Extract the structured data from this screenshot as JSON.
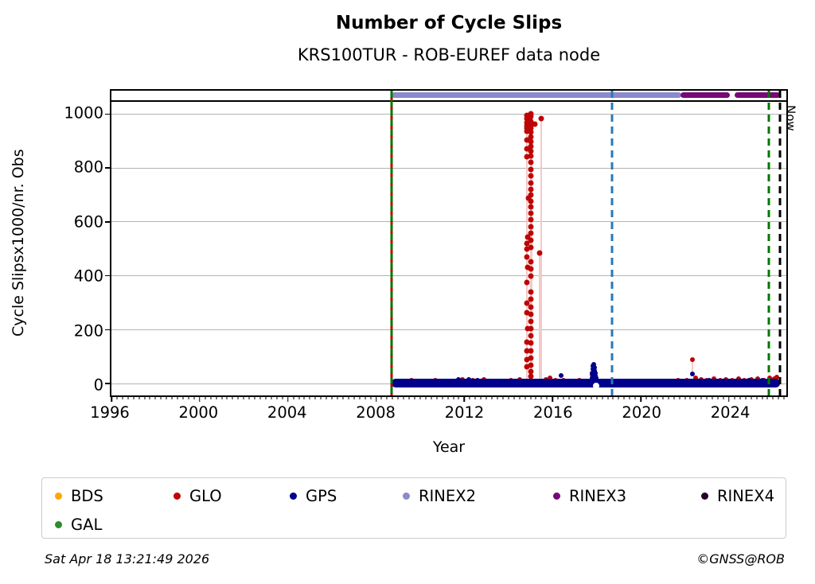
{
  "title": "Number of Cycle Slips",
  "subtitle": "KRS100TUR - ROB-EUREF data node",
  "footer": {
    "timestamp": "Sat Apr 18 13:21:49 2026",
    "credit": "©GNSS@ROB"
  },
  "legend": {
    "items": [
      {
        "label": "BDS",
        "color": "#FFA500"
      },
      {
        "label": "GLO",
        "color": "#BE0404"
      },
      {
        "label": "GPS",
        "color": "#00008B"
      },
      {
        "label": "RINEX2",
        "color": "#8A8ACC"
      },
      {
        "label": "RINEX3",
        "color": "#770877"
      },
      {
        "label": "RINEX4",
        "color": "#270227"
      },
      {
        "label": "GAL",
        "color": "#2E8B2E"
      }
    ]
  },
  "chart_data": {
    "type": "scatter",
    "title": "Number of Cycle Slips",
    "subtitle": "KRS100TUR - ROB-EUREF data node",
    "xlabel": "Year",
    "ylabel": "Cycle Slipsx1000/nr. Obs",
    "xlim": [
      1996,
      2026.6
    ],
    "ylim": [
      -44,
      1087
    ],
    "x_ticks": [
      1996,
      2000,
      2004,
      2008,
      2012,
      2016,
      2020,
      2024
    ],
    "x_minor_step": 0.25,
    "y_ticks": [
      0,
      200,
      400,
      600,
      800,
      1000
    ],
    "grid": {
      "axis": "y",
      "color": "#b3b3b3"
    },
    "now_label": "Now",
    "now_x": 2026.3,
    "top_rule_y": 1049,
    "rinex_bands": [
      {
        "name": "RINEX2",
        "color": "#8A8ACC",
        "y": 1070,
        "segments": [
          [
            2008.7,
            2021.85
          ]
        ]
      },
      {
        "name": "RINEX3",
        "color": "#770877",
        "y": 1070,
        "segments": [
          [
            2021.8,
            2024.05
          ],
          [
            2024.25,
            2026.3
          ]
        ]
      }
    ],
    "vlines": [
      {
        "x": 2008.7,
        "colors": [
          "#007800",
          "#C00000"
        ],
        "style": "dashed",
        "note": "data start (GAL/GLO)"
      },
      {
        "x": 2018.7,
        "colors": [
          "#2878B8"
        ],
        "style": "dashed"
      },
      {
        "x": 2025.8,
        "colors": [
          "#007800"
        ],
        "style": "dashed"
      },
      {
        "x": 2026.3,
        "colors": [
          "#000000"
        ],
        "style": "dashed",
        "label": "Now"
      }
    ],
    "stems": [
      {
        "x": 2014.83,
        "y1": 0,
        "y2": 985
      },
      {
        "x": 2015.0,
        "y1": 0,
        "y2": 1000
      },
      {
        "x": 2015.04,
        "y1": 0,
        "y2": 995
      },
      {
        "x": 2015.42,
        "y1": 0,
        "y2": 485
      },
      {
        "x": 2015.5,
        "y1": 0,
        "y2": 980
      },
      {
        "x": 2022.35,
        "y1": 30,
        "y2": 89
      }
    ],
    "baseline_band": {
      "name": "GPS dense baseline",
      "color": "#00008B",
      "from": 2008.7,
      "to": 2026.3,
      "center": 2,
      "half_height": 16
    },
    "notch": {
      "x": 2017.98,
      "y": -9
    },
    "series": [
      {
        "name": "GLO-spike-2015",
        "color": "#BE0404",
        "size": 7,
        "points": [
          [
            2014.82,
            995
          ],
          [
            2014.83,
            983
          ],
          [
            2014.82,
            970
          ],
          [
            2014.84,
            958
          ],
          [
            2014.83,
            947
          ],
          [
            2014.82,
            935
          ],
          [
            2014.84,
            905
          ],
          [
            2014.83,
            872
          ],
          [
            2014.82,
            843
          ],
          [
            2014.9,
            688
          ],
          [
            2014.88,
            545
          ],
          [
            2014.83,
            520
          ],
          [
            2014.84,
            498
          ],
          [
            2014.82,
            470
          ],
          [
            2014.88,
            432
          ],
          [
            2014.84,
            374
          ],
          [
            2014.82,
            300
          ],
          [
            2014.83,
            262
          ],
          [
            2014.88,
            205
          ],
          [
            2014.84,
            155
          ],
          [
            2014.83,
            120
          ],
          [
            2014.82,
            90
          ],
          [
            2014.84,
            62
          ],
          [
            2015.0,
            1000
          ],
          [
            2015.02,
            992
          ],
          [
            2014.99,
            985
          ],
          [
            2015.01,
            972
          ],
          [
            2015.03,
            960
          ],
          [
            2015.0,
            948
          ],
          [
            2015.02,
            932
          ],
          [
            2015.0,
            915
          ],
          [
            2015.01,
            898
          ],
          [
            2015.03,
            880
          ],
          [
            2015.0,
            862
          ],
          [
            2015.02,
            845
          ],
          [
            2015.01,
            820
          ],
          [
            2015.0,
            795
          ],
          [
            2015.02,
            770
          ],
          [
            2015.01,
            745
          ],
          [
            2015.03,
            720
          ],
          [
            2015.0,
            700
          ],
          [
            2015.02,
            678
          ],
          [
            2015.01,
            655
          ],
          [
            2015.0,
            632
          ],
          [
            2015.02,
            608
          ],
          [
            2015.01,
            582
          ],
          [
            2015.03,
            558
          ],
          [
            2015.0,
            532
          ],
          [
            2015.02,
            505
          ],
          [
            2015.01,
            452
          ],
          [
            2015.0,
            425
          ],
          [
            2015.02,
            398
          ],
          [
            2015.01,
            340
          ],
          [
            2015.0,
            312
          ],
          [
            2015.02,
            285
          ],
          [
            2015.01,
            258
          ],
          [
            2015.03,
            232
          ],
          [
            2015.0,
            205
          ],
          [
            2015.02,
            178
          ],
          [
            2015.01,
            150
          ],
          [
            2015.0,
            122
          ],
          [
            2015.02,
            95
          ],
          [
            2015.01,
            68
          ],
          [
            2015.0,
            45
          ],
          [
            2015.02,
            28
          ],
          [
            2015.18,
            962
          ],
          [
            2015.42,
            485
          ],
          [
            2015.5,
            985
          ]
        ]
      },
      {
        "name": "GLO-baseline",
        "color": "#BE0404",
        "size": 6,
        "points": [
          [
            2009.15,
            10
          ],
          [
            2009.6,
            13
          ],
          [
            2010.1,
            9
          ],
          [
            2010.7,
            12
          ],
          [
            2011.3,
            10
          ],
          [
            2011.9,
            14
          ],
          [
            2012.4,
            11
          ],
          [
            2012.9,
            15
          ],
          [
            2013.5,
            10
          ],
          [
            2014.1,
            13
          ],
          [
            2014.5,
            16
          ],
          [
            2015.7,
            16
          ],
          [
            2015.9,
            20
          ],
          [
            2016.15,
            13
          ],
          [
            2016.5,
            11
          ],
          [
            2016.9,
            10
          ],
          [
            2017.2,
            12
          ],
          [
            2017.8,
            32
          ],
          [
            2017.88,
            26
          ],
          [
            2017.95,
            22
          ],
          [
            2018.3,
            10
          ],
          [
            2019.0,
            8
          ],
          [
            2019.8,
            9
          ],
          [
            2020.6,
            8
          ],
          [
            2021.2,
            10
          ],
          [
            2021.7,
            13
          ],
          [
            2022.1,
            12
          ],
          [
            2022.35,
            89
          ],
          [
            2022.5,
            20
          ],
          [
            2022.75,
            15
          ],
          [
            2023.0,
            13
          ],
          [
            2023.3,
            17
          ],
          [
            2023.6,
            12
          ],
          [
            2023.85,
            16
          ],
          [
            2024.15,
            13
          ],
          [
            2024.45,
            17
          ],
          [
            2024.7,
            12
          ],
          [
            2025.0,
            15
          ],
          [
            2025.3,
            19
          ],
          [
            2025.6,
            13
          ],
          [
            2025.85,
            20
          ],
          [
            2026.05,
            17
          ],
          [
            2026.15,
            25
          ]
        ]
      },
      {
        "name": "GPS",
        "color": "#00008B",
        "size": 6,
        "points": [
          [
            2011.75,
            14
          ],
          [
            2012.2,
            16
          ],
          [
            2012.6,
            12
          ],
          [
            2016.4,
            30
          ],
          [
            2017.78,
            22
          ],
          [
            2017.8,
            38
          ],
          [
            2017.82,
            52
          ],
          [
            2017.84,
            64
          ],
          [
            2017.86,
            70
          ],
          [
            2017.87,
            58
          ],
          [
            2017.89,
            47
          ],
          [
            2017.91,
            60
          ],
          [
            2017.93,
            40
          ],
          [
            2017.95,
            30
          ],
          [
            2017.97,
            20
          ],
          [
            2017.83,
            30
          ],
          [
            2017.88,
            35
          ],
          [
            2017.92,
            25
          ],
          [
            2022.35,
            36
          ],
          [
            2023.1,
            12
          ],
          [
            2024.9,
            11
          ],
          [
            2025.5,
            13
          ]
        ]
      }
    ]
  }
}
